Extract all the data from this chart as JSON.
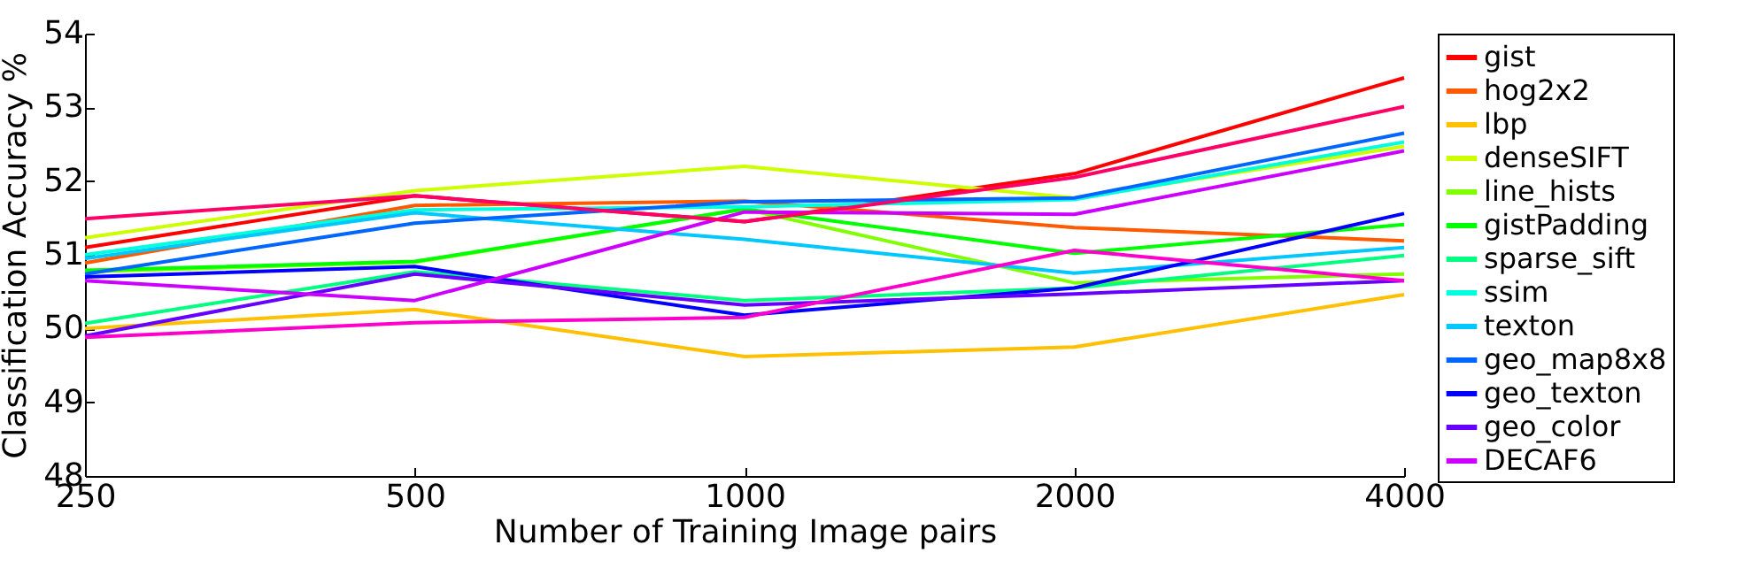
{
  "chart_data": {
    "type": "line",
    "xlabel": "Number of Training Image pairs",
    "ylabel": "Classification Accuracy %",
    "categories": [
      "250",
      "500",
      "1000",
      "2000",
      "4000"
    ],
    "ylim": [
      48,
      54
    ],
    "yticks": [
      48,
      49,
      50,
      51,
      52,
      53,
      54
    ],
    "grid": false,
    "legend": "right",
    "marker": "none",
    "line_style": "solid",
    "series": [
      {
        "name": "gist",
        "color": "#ff0000",
        "values": [
          51.1,
          51.8,
          51.45,
          52.1,
          53.4
        ]
      },
      {
        "name": "hog2x2",
        "color": "#ff5a00",
        "values": [
          50.89,
          51.67,
          51.73,
          51.37,
          51.19
        ]
      },
      {
        "name": "lbp",
        "color": "#ffc000",
        "values": [
          50.0,
          50.26,
          49.62,
          49.75,
          50.46
        ]
      },
      {
        "name": "denseSIFT",
        "color": "#ccff00",
        "values": [
          51.23,
          51.87,
          52.2,
          51.77,
          52.47
        ]
      },
      {
        "name": "line_hists",
        "color": "#80ff00",
        "values": [
          50.77,
          50.9,
          51.62,
          50.62,
          50.74
        ]
      },
      {
        "name": "gistPadding",
        "color": "#00ff00",
        "values": [
          50.79,
          50.91,
          51.62,
          51.02,
          51.41
        ]
      },
      {
        "name": "sparse_sift",
        "color": "#00ff80",
        "values": [
          50.07,
          50.77,
          50.38,
          50.55,
          50.99
        ]
      },
      {
        "name": "ssim",
        "color": "#00ffdd",
        "values": [
          51.0,
          51.61,
          51.65,
          51.75,
          52.53
        ]
      },
      {
        "name": "texton",
        "color": "#00c8ff",
        "values": [
          50.95,
          51.57,
          51.21,
          50.75,
          51.1
        ]
      },
      {
        "name": "geo_map8x8",
        "color": "#0066ff",
        "values": [
          50.74,
          51.43,
          51.72,
          51.77,
          52.65
        ]
      },
      {
        "name": "geo_texton",
        "color": "#0000ff",
        "values": [
          50.7,
          50.84,
          50.18,
          50.55,
          51.56
        ]
      },
      {
        "name": "geo_color",
        "color": "#6600ff",
        "values": [
          49.9,
          50.74,
          50.32,
          50.47,
          50.65
        ]
      },
      {
        "name": "DECAF6",
        "color": "#cc00ff",
        "values": [
          50.65,
          50.38,
          51.58,
          51.55,
          52.41
        ]
      },
      {
        "color": "#ff00cc",
        "values": [
          49.88,
          50.08,
          50.15,
          51.06,
          50.65
        ]
      },
      {
        "color": "#ff0066",
        "values": [
          51.49,
          51.8,
          51.45,
          52.05,
          53.01
        ]
      }
    ]
  }
}
